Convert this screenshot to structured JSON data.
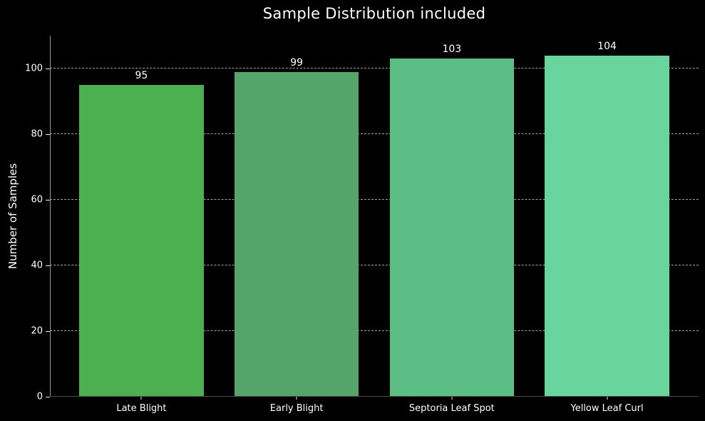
{
  "chart_data": {
    "type": "bar",
    "title": "Sample Distribution included",
    "xlabel": "",
    "ylabel": "Number of Samples",
    "categories": [
      "Late Blight",
      "Early Blight",
      "Septoria Leaf Spot",
      "Yellow Leaf Curl"
    ],
    "values": [
      95,
      99,
      103,
      104
    ],
    "bar_colors": [
      "#4caf50",
      "#55a56b",
      "#5cbe84",
      "#6ad49e"
    ],
    "ylim": [
      0,
      110
    ],
    "yticks": [
      0,
      20,
      40,
      60,
      80,
      100
    ],
    "grid": true,
    "grid_axis": "y",
    "grid_style": "dashed",
    "grid_color": "#a6a6a6",
    "legend": "none",
    "background_color": "#000000",
    "text_color": "#ffffff"
  }
}
